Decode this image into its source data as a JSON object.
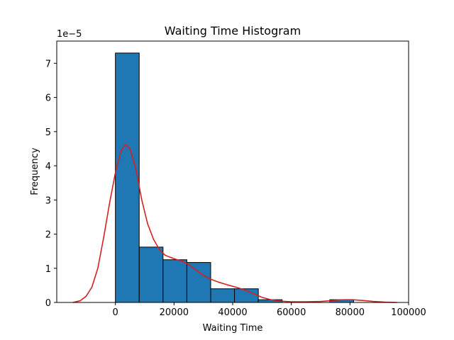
{
  "chart_data": {
    "type": "bar",
    "title": "Waiting Time Histogram",
    "xlabel": "Waiting Time",
    "ylabel": "Frequency",
    "y_offset_label": "1e−5",
    "xlim": [
      -20000,
      100000
    ],
    "ylim": [
      0,
      7.65
    ],
    "y_scale_exponent": -5,
    "x_ticks": [
      0,
      20000,
      40000,
      60000,
      80000,
      100000
    ],
    "x_tick_labels": [
      "0",
      "20000",
      "40000",
      "60000",
      "80000",
      "100000"
    ],
    "y_ticks": [
      0,
      1,
      2,
      3,
      4,
      5,
      6,
      7
    ],
    "y_tick_labels": [
      "0",
      "1",
      "2",
      "3",
      "4",
      "5",
      "6",
      "7"
    ],
    "bins": [
      {
        "x0": 0,
        "x1": 8125,
        "value": 7.3
      },
      {
        "x0": 8125,
        "x1": 16250,
        "value": 1.62
      },
      {
        "x0": 16250,
        "x1": 24375,
        "value": 1.25
      },
      {
        "x0": 24375,
        "x1": 32500,
        "value": 1.17
      },
      {
        "x0": 32500,
        "x1": 40625,
        "value": 0.4
      },
      {
        "x0": 40625,
        "x1": 48750,
        "value": 0.4
      },
      {
        "x0": 48750,
        "x1": 56875,
        "value": 0.08
      },
      {
        "x0": 56875,
        "x1": 65000,
        "value": 0
      },
      {
        "x0": 65000,
        "x1": 73125,
        "value": 0
      },
      {
        "x0": 73125,
        "x1": 81250,
        "value": 0.08
      }
    ],
    "kde": {
      "x": [
        -14500,
        -12000,
        -10000,
        -8000,
        -6000,
        -4000,
        -2000,
        0,
        2000,
        3500,
        5000,
        7000,
        9000,
        11000,
        13000,
        15000,
        17000,
        20000,
        23000,
        26000,
        29000,
        32000,
        35000,
        38000,
        41000,
        44000,
        47000,
        50000,
        53000,
        56000,
        60000,
        65000,
        70000,
        75000,
        78000,
        81000,
        84000,
        88000,
        92000,
        96000
      ],
      "y": [
        0.0,
        0.05,
        0.18,
        0.45,
        1.0,
        1.9,
        2.9,
        3.8,
        4.45,
        4.62,
        4.5,
        3.9,
        3.0,
        2.3,
        1.85,
        1.55,
        1.38,
        1.28,
        1.2,
        1.05,
        0.85,
        0.7,
        0.6,
        0.52,
        0.45,
        0.37,
        0.26,
        0.15,
        0.08,
        0.04,
        0.02,
        0.02,
        0.03,
        0.06,
        0.08,
        0.08,
        0.06,
        0.03,
        0.01,
        0.0
      ]
    },
    "bar_color": "#1f77b4",
    "bar_edge_color": "#000000",
    "kde_color": "#d62020",
    "grid": false,
    "legend": "none"
  }
}
